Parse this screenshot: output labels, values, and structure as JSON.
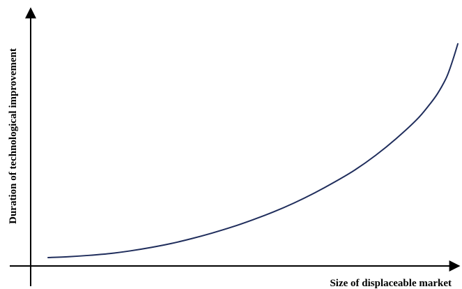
{
  "chart_data": {
    "type": "line",
    "title": "",
    "xlabel": "Size of displaceable market",
    "ylabel": "Duration of technological improvement",
    "xlim": [
      0,
      1
    ],
    "ylim": [
      0,
      1
    ],
    "grid": false,
    "series": [
      {
        "color": "#1f2d5c",
        "x": [
          0.0,
          0.05,
          0.1,
          0.15,
          0.2,
          0.25,
          0.3,
          0.35,
          0.4,
          0.45,
          0.5,
          0.55,
          0.6,
          0.65,
          0.7,
          0.75,
          0.8,
          0.85,
          0.9,
          0.93,
          0.95,
          0.97,
          0.98,
          0.99,
          1.0
        ],
        "y": [
          0.0,
          0.004,
          0.01,
          0.018,
          0.03,
          0.045,
          0.063,
          0.085,
          0.11,
          0.138,
          0.17,
          0.205,
          0.245,
          0.29,
          0.34,
          0.395,
          0.46,
          0.535,
          0.62,
          0.685,
          0.735,
          0.8,
          0.845,
          0.9,
          0.96
        ]
      }
    ]
  }
}
